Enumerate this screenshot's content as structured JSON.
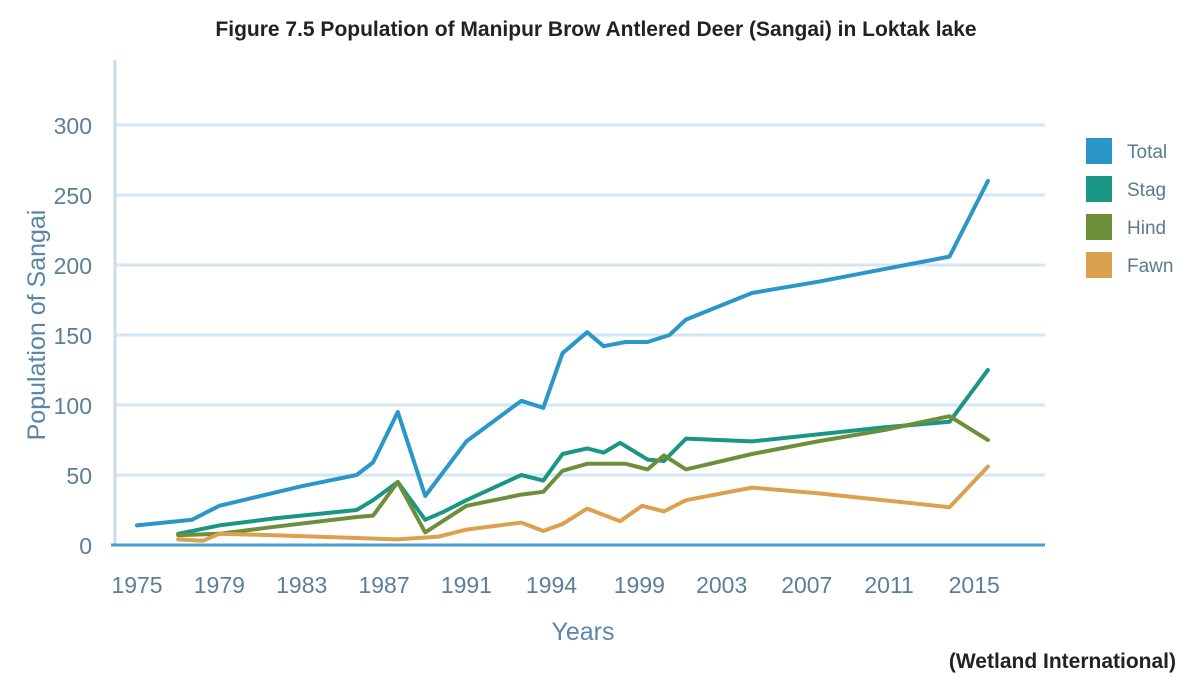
{
  "title": "Figure 7.5 Population of Manipur Brow Antlered Deer (Sangai) in Loktak lake",
  "source": "(Wetland International)",
  "chart_data": {
    "type": "line",
    "xlabel": "Years",
    "ylabel": "Population of Sangai",
    "x_ticks": [
      "1975",
      "1979",
      "1983",
      "1987",
      "1991",
      "1994",
      "1999",
      "2003",
      "2007",
      "2011",
      "2015"
    ],
    "y_ticks": [
      "0",
      "50",
      "100",
      "150",
      "200",
      "250",
      "300"
    ],
    "ylim": [
      0,
      300
    ],
    "grid": "horizontal",
    "legend_position": "right",
    "series": [
      {
        "name": "Total",
        "color": "#2a97c8",
        "points": [
          [
            0,
            14
          ],
          [
            2,
            18
          ],
          [
            3,
            28
          ],
          [
            6,
            42
          ],
          [
            8,
            50
          ],
          [
            8.6,
            59
          ],
          [
            9.5,
            95
          ],
          [
            10.5,
            35
          ],
          [
            12,
            74
          ],
          [
            14,
            103
          ],
          [
            14.8,
            98
          ],
          [
            15.5,
            137
          ],
          [
            16.4,
            152
          ],
          [
            17,
            142
          ],
          [
            17.8,
            145
          ],
          [
            18.6,
            145
          ],
          [
            19.4,
            150
          ],
          [
            20,
            161
          ],
          [
            22.4,
            180
          ],
          [
            24.8,
            188
          ],
          [
            27.2,
            197
          ],
          [
            29.6,
            206
          ],
          [
            31,
            260
          ]
        ]
      },
      {
        "name": "Stag",
        "color": "#1a9684",
        "points": [
          [
            1.5,
            8
          ],
          [
            3,
            14
          ],
          [
            5,
            19
          ],
          [
            8,
            25
          ],
          [
            8.6,
            32
          ],
          [
            9.5,
            45
          ],
          [
            10.5,
            18
          ],
          [
            11.2,
            24
          ],
          [
            12,
            32
          ],
          [
            14,
            50
          ],
          [
            14.8,
            46
          ],
          [
            15.5,
            65
          ],
          [
            16.4,
            69
          ],
          [
            17,
            66
          ],
          [
            17.6,
            73
          ],
          [
            18.6,
            61
          ],
          [
            19.2,
            60
          ],
          [
            20,
            76
          ],
          [
            22.4,
            74
          ],
          [
            24.8,
            79
          ],
          [
            27.2,
            84
          ],
          [
            29.6,
            88
          ],
          [
            31,
            125
          ]
        ]
      },
      {
        "name": "Hind",
        "color": "#6e8f3a",
        "points": [
          [
            1.5,
            7
          ],
          [
            3,
            8
          ],
          [
            5,
            13
          ],
          [
            8,
            20
          ],
          [
            8.6,
            21
          ],
          [
            9.5,
            45
          ],
          [
            10.5,
            9
          ],
          [
            12,
            28
          ],
          [
            14,
            36
          ],
          [
            14.8,
            38
          ],
          [
            15.5,
            53
          ],
          [
            16.4,
            58
          ],
          [
            17.8,
            58
          ],
          [
            18.6,
            54
          ],
          [
            19.2,
            64
          ],
          [
            20,
            54
          ],
          [
            22.4,
            65
          ],
          [
            24.8,
            74
          ],
          [
            27.2,
            82
          ],
          [
            29.6,
            92
          ],
          [
            31,
            75
          ]
        ]
      },
      {
        "name": "Fawn",
        "color": "#dca14e",
        "points": [
          [
            1.5,
            4
          ],
          [
            2.4,
            3
          ],
          [
            3,
            8
          ],
          [
            5,
            7
          ],
          [
            8,
            5
          ],
          [
            9.5,
            4
          ],
          [
            11,
            6
          ],
          [
            12,
            11
          ],
          [
            14,
            16
          ],
          [
            14.8,
            10
          ],
          [
            15.5,
            15
          ],
          [
            16.4,
            26
          ],
          [
            17.6,
            17
          ],
          [
            18.4,
            28
          ],
          [
            19.2,
            24
          ],
          [
            20,
            32
          ],
          [
            22.4,
            41
          ],
          [
            24.8,
            37
          ],
          [
            27.2,
            32
          ],
          [
            29.6,
            27
          ],
          [
            31,
            56
          ]
        ]
      }
    ]
  }
}
